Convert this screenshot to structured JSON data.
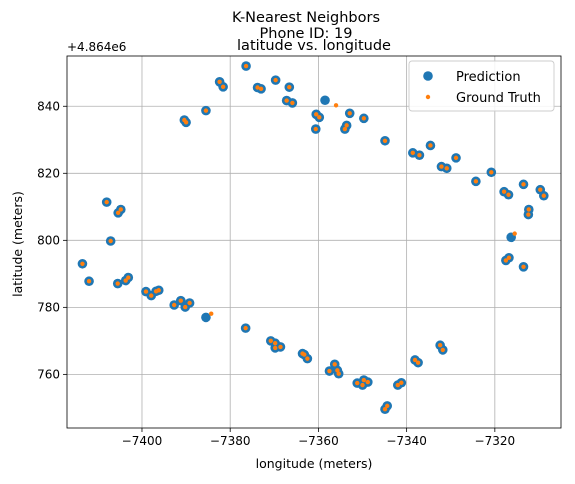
{
  "chart_data": {
    "type": "scatter",
    "title_lines": [
      "K-Nearest Neighbors",
      "Phone ID: 19"
    ],
    "subtitle": "latitude vs. longitude",
    "xlabel": "longitude (meters)",
    "ylabel": "latitude (meters)",
    "offset_text": "+4.864e6",
    "xlim": [
      -7417,
      -7305
    ],
    "ylim": [
      744,
      855
    ],
    "x_ticks": [
      -7400,
      -7380,
      -7360,
      -7340,
      -7320
    ],
    "y_ticks": [
      760,
      780,
      800,
      820,
      840
    ],
    "x_tick_labels": [
      "−7400",
      "−7380",
      "−7360",
      "−7340",
      "−7320"
    ],
    "y_tick_labels": [
      "760",
      "780",
      "800",
      "820",
      "840"
    ],
    "grid": true,
    "legend_placement": "top-right",
    "series": [
      {
        "name": "Prediction",
        "color": "#1f77b4",
        "marker": "large-circle",
        "x": [
          -7376.4,
          -7381.6,
          -7382.4,
          -7373.0,
          -7373.8,
          -7369.7,
          -7366.6,
          -7365.9,
          -7367.2,
          -7358.5,
          -7360.5,
          -7359.8,
          -7360.6,
          -7353.6,
          -7354.0,
          -7352.9,
          -7349.7,
          -7344.9,
          -7338.6,
          -7337.1,
          -7334.6,
          -7332.1,
          -7330.9,
          -7328.8,
          -7320.8,
          -7324.3,
          -7317.9,
          -7316.9,
          -7313.5,
          -7312.4,
          -7312.3,
          -7309.7,
          -7308.9,
          -7316.3,
          -7316.8,
          -7317.5,
          -7313.5,
          -7390.4,
          -7390.0,
          -7385.5,
          -7408.0,
          -7405.4,
          -7404.8,
          -7407.1,
          -7412.0,
          -7413.5,
          -7403.1,
          -7403.7,
          -7405.5,
          -7399.1,
          -7397.9,
          -7396.8,
          -7396.2,
          -7392.7,
          -7391.2,
          -7390.2,
          -7389.2,
          -7385.5,
          -7376.5,
          -7370.8,
          -7369.8,
          -7368.6,
          -7369.8,
          -7363.6,
          -7362.5,
          -7363.2,
          -7356.3,
          -7355.7,
          -7357.5,
          -7355.4,
          -7351.2,
          -7350.0,
          -7348.8,
          -7349.7,
          -7342.0,
          -7341.2,
          -7344.9,
          -7344.4,
          -7337.4,
          -7338.1,
          -7331.8,
          -7332.4
        ],
        "y": [
          852.0,
          845.8,
          847.3,
          845.2,
          845.6,
          847.8,
          845.7,
          841.0,
          841.7,
          841.8,
          837.6,
          836.7,
          833.2,
          834.3,
          833.2,
          837.9,
          836.4,
          829.7,
          826.1,
          825.4,
          828.3,
          822.0,
          821.5,
          824.6,
          820.3,
          817.6,
          814.5,
          813.6,
          816.7,
          807.7,
          809.2,
          815.1,
          813.3,
          800.9,
          794.8,
          794.0,
          792.1,
          835.9,
          835.2,
          838.7,
          811.4,
          808.2,
          809.2,
          799.8,
          787.8,
          793.0,
          788.9,
          788.0,
          787.1,
          784.7,
          783.5,
          784.8,
          785.1,
          780.7,
          782.0,
          780.1,
          781.3,
          777.0,
          773.8,
          770.0,
          769.3,
          768.2,
          767.9,
          766.2,
          764.7,
          765.9,
          763.0,
          761.2,
          761.0,
          760.2,
          757.4,
          756.8,
          757.7,
          758.3,
          756.8,
          757.5,
          749.6,
          750.6,
          763.5,
          764.3,
          767.3,
          768.7
        ]
      },
      {
        "name": "Ground Truth",
        "color": "#ff7f0e",
        "marker": "small-dot",
        "x": [
          -7376.4,
          -7381.6,
          -7382.4,
          -7373.0,
          -7373.8,
          -7369.7,
          -7366.6,
          -7365.9,
          -7367.2,
          -7356.0,
          -7360.5,
          -7359.8,
          -7360.6,
          -7353.6,
          -7354.0,
          -7352.9,
          -7349.7,
          -7344.9,
          -7338.6,
          -7337.1,
          -7334.6,
          -7332.1,
          -7330.9,
          -7328.8,
          -7320.8,
          -7324.3,
          -7317.9,
          -7316.9,
          -7313.5,
          -7312.4,
          -7312.3,
          -7309.7,
          -7308.9,
          -7315.5,
          -7316.8,
          -7317.5,
          -7313.5,
          -7390.4,
          -7390.0,
          -7385.5,
          -7408.0,
          -7405.4,
          -7404.8,
          -7407.1,
          -7412.0,
          -7413.5,
          -7403.1,
          -7403.7,
          -7405.5,
          -7399.1,
          -7397.9,
          -7396.8,
          -7396.2,
          -7392.7,
          -7391.2,
          -7390.2,
          -7389.2,
          -7384.3,
          -7376.5,
          -7370.8,
          -7369.8,
          -7368.6,
          -7369.8,
          -7363.6,
          -7362.5,
          -7363.2,
          -7356.3,
          -7355.7,
          -7357.5,
          -7355.4,
          -7351.2,
          -7350.0,
          -7348.8,
          -7349.7,
          -7342.0,
          -7341.2,
          -7344.9,
          -7344.4,
          -7337.4,
          -7338.1,
          -7331.8,
          -7332.4
        ],
        "y": [
          852.0,
          845.8,
          847.3,
          845.2,
          845.6,
          847.8,
          845.7,
          841.0,
          841.7,
          840.3,
          837.6,
          836.7,
          833.2,
          834.3,
          833.2,
          837.9,
          836.4,
          829.7,
          826.1,
          825.4,
          828.3,
          822.0,
          821.5,
          824.6,
          820.3,
          817.6,
          814.5,
          813.6,
          816.7,
          807.7,
          809.2,
          815.1,
          813.3,
          802.0,
          794.8,
          794.0,
          792.1,
          835.9,
          835.2,
          838.7,
          811.4,
          808.2,
          809.2,
          799.8,
          787.8,
          793.0,
          788.9,
          788.0,
          787.1,
          784.7,
          783.5,
          784.8,
          785.1,
          780.7,
          782.0,
          780.1,
          781.3,
          778.1,
          773.8,
          770.0,
          769.3,
          768.2,
          767.9,
          766.2,
          764.7,
          765.9,
          763.0,
          761.2,
          761.0,
          760.2,
          757.4,
          756.8,
          757.7,
          758.3,
          756.8,
          757.5,
          749.6,
          750.6,
          763.5,
          764.3,
          767.3,
          768.7
        ]
      }
    ]
  }
}
